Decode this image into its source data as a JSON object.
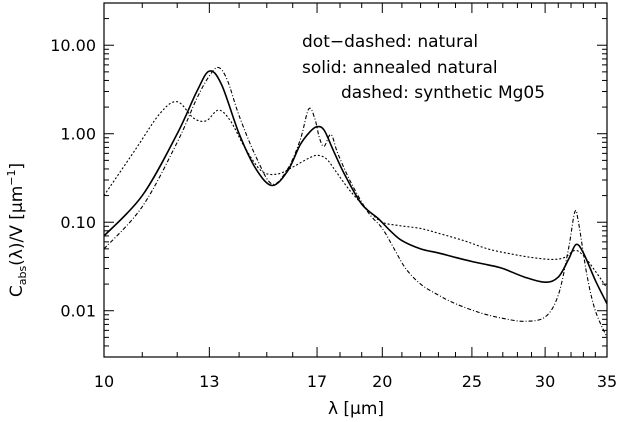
{
  "chart_data": {
    "type": "line",
    "title": "",
    "xlabel": "λ [μm]",
    "ylabel": "C_abs(λ)/V [μm^-1]",
    "ylabel_main": "C",
    "ylabel_sub": "abs",
    "ylabel_mid": "(λ)/V [μm",
    "ylabel_sup": "−1",
    "ylabel_end": "]",
    "xscale": "log",
    "yscale": "log",
    "xlim": [
      10,
      35
    ],
    "ylim": [
      0.003,
      30
    ],
    "xticks": [
      10,
      13,
      17,
      20,
      25,
      30,
      35
    ],
    "xtick_labels": [
      "10",
      "13",
      "17",
      "20",
      "25",
      "30",
      "35"
    ],
    "yticks": [
      0.01,
      0.1,
      1,
      10
    ],
    "ytick_labels": [
      "0.01",
      "0.10",
      "1.00",
      "10.00"
    ],
    "grid": false,
    "legend_position": "top-right",
    "annotations": [
      "dot−dashed: natural",
      "solid: annealed natural",
      "dashed: synthetic Mg05"
    ],
    "series": [
      {
        "style": "solid",
        "x": [
          10,
          11,
          12,
          12.6,
          13.0,
          13.4,
          14.0,
          14.6,
          15.2,
          15.8,
          16.3,
          16.7,
          17.0,
          17.3,
          17.7,
          18.2,
          19.0,
          19.8,
          20.4,
          21.0,
          22.0,
          23.0,
          24.0,
          25.0,
          26.0,
          27.0,
          28.5,
          30.0,
          31.0,
          31.8,
          32.4,
          33.0,
          34.0,
          35.0
        ],
        "y": [
          0.07,
          0.2,
          1.0,
          3.0,
          5.1,
          3.6,
          1.0,
          0.4,
          0.26,
          0.38,
          0.75,
          1.05,
          1.2,
          1.1,
          0.65,
          0.35,
          0.16,
          0.11,
          0.08,
          0.062,
          0.05,
          0.045,
          0.04,
          0.036,
          0.033,
          0.03,
          0.024,
          0.021,
          0.024,
          0.038,
          0.056,
          0.045,
          0.022,
          0.012
        ]
      },
      {
        "style": "dot-dashed",
        "x": [
          10,
          11,
          12,
          12.6,
          13.0,
          13.3,
          13.6,
          14.0,
          14.6,
          15.2,
          15.8,
          16.3,
          16.65,
          16.9,
          17.1,
          17.3,
          17.6,
          17.9,
          18.5,
          19.3,
          20.0,
          20.6,
          21.2,
          22.0,
          23.0,
          24.0,
          25.5,
          27.0,
          28.5,
          30.0,
          31.0,
          31.8,
          32.3,
          32.6,
          33.3,
          34.0,
          35.0
        ],
        "y": [
          0.05,
          0.15,
          0.8,
          2.5,
          4.5,
          5.6,
          4.0,
          1.6,
          0.55,
          0.27,
          0.4,
          0.85,
          1.9,
          1.5,
          0.9,
          0.72,
          0.98,
          0.6,
          0.28,
          0.13,
          0.085,
          0.05,
          0.03,
          0.02,
          0.015,
          0.012,
          0.0095,
          0.0082,
          0.0076,
          0.0085,
          0.015,
          0.05,
          0.13,
          0.1,
          0.025,
          0.01,
          0.005
        ]
      },
      {
        "style": "dashed",
        "x": [
          10,
          10.8,
          11.5,
          12.0,
          12.5,
          12.9,
          13.3,
          13.7,
          14.2,
          14.8,
          15.4,
          16.0,
          16.6,
          17.0,
          17.4,
          17.8,
          18.5,
          19.4,
          20.0,
          20.8,
          22.0,
          23.0,
          24.5,
          26.0,
          27.5,
          29.0,
          30.5,
          31.5,
          32.3,
          33.0,
          34.0,
          35.0
        ],
        "y": [
          0.2,
          0.65,
          1.7,
          2.3,
          1.5,
          1.4,
          1.85,
          1.4,
          0.7,
          0.38,
          0.35,
          0.42,
          0.52,
          0.57,
          0.52,
          0.38,
          0.22,
          0.13,
          0.1,
          0.092,
          0.085,
          0.075,
          0.062,
          0.05,
          0.044,
          0.04,
          0.038,
          0.04,
          0.048,
          0.042,
          0.028,
          0.018
        ]
      }
    ]
  }
}
